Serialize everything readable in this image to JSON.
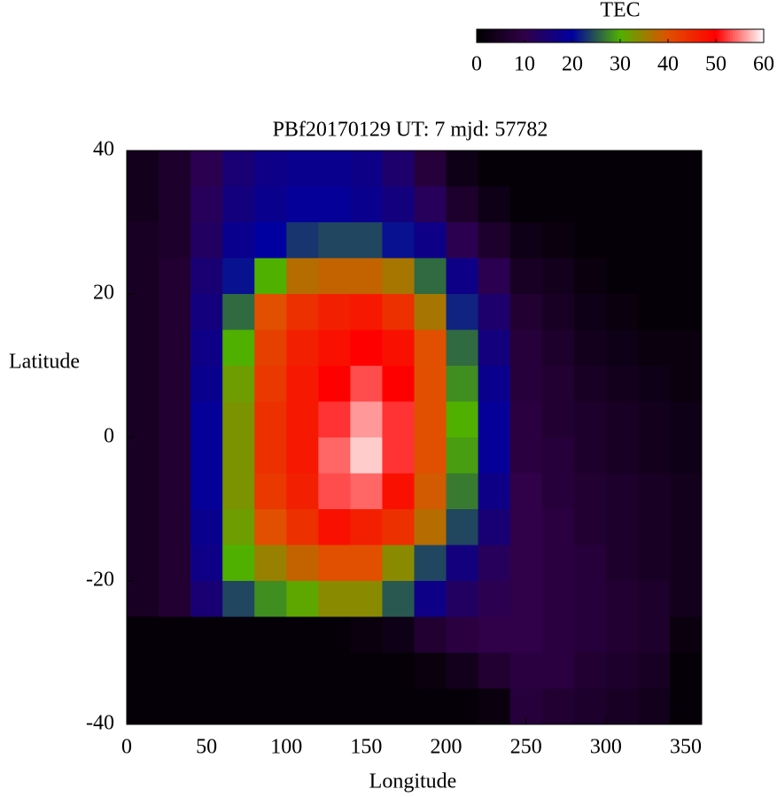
{
  "chart_data": {
    "type": "heatmap",
    "title": "PBf20170129  UT: 7  mjd: 57782",
    "x_label": "Longitude",
    "y_label": "Latitude",
    "colorbar_label": "TEC",
    "x": [
      10,
      30,
      50,
      70,
      90,
      110,
      130,
      150,
      170,
      190,
      210,
      230,
      250,
      270,
      290,
      310,
      330,
      350
    ],
    "y": [
      37.5,
      32.5,
      27.5,
      22.5,
      17.5,
      12.5,
      7.5,
      2.5,
      -2.5,
      -7.5,
      -12.5,
      -17.5,
      -22.5,
      -27.5,
      -32.5,
      -37.5
    ],
    "z": [
      [
        4,
        6,
        11,
        15,
        17,
        18,
        18,
        17,
        14,
        8,
        3,
        1,
        1,
        1,
        1,
        1,
        1,
        1
      ],
      [
        4,
        6,
        12,
        16,
        18,
        19,
        19,
        18,
        16,
        12,
        6,
        3,
        1,
        1,
        1,
        1,
        1,
        1
      ],
      [
        5,
        6,
        13,
        18,
        20,
        23,
        24,
        24,
        21,
        17,
        11,
        6,
        3,
        2,
        1,
        1,
        1,
        1
      ],
      [
        5,
        7,
        15,
        21,
        30,
        37,
        38,
        38,
        36,
        26,
        17,
        11,
        5,
        4,
        2,
        1,
        1,
        1
      ],
      [
        5,
        7,
        16,
        26,
        40,
        44,
        46,
        47,
        44,
        36,
        22,
        14,
        7,
        5,
        3,
        2,
        1,
        1
      ],
      [
        5,
        7,
        17,
        30,
        42,
        46,
        48,
        50,
        48,
        40,
        26,
        16,
        8,
        6,
        4,
        3,
        2,
        2
      ],
      [
        5,
        7,
        18,
        32,
        43,
        47,
        50,
        53,
        50,
        40,
        28,
        18,
        8,
        7,
        5,
        4,
        3,
        2
      ],
      [
        5,
        7,
        19,
        33,
        44,
        47,
        52,
        56,
        52,
        40,
        30,
        19,
        9,
        7,
        6,
        5,
        4,
        3
      ],
      [
        5,
        7,
        19,
        33,
        44,
        47,
        54,
        58,
        52,
        40,
        29,
        19,
        9,
        8,
        6,
        5,
        4,
        3
      ],
      [
        5,
        7,
        19,
        33,
        43,
        46,
        53,
        54,
        48,
        39,
        27,
        17,
        10,
        8,
        7,
        6,
        5,
        4
      ],
      [
        5,
        7,
        18,
        32,
        40,
        44,
        48,
        46,
        44,
        37,
        24,
        15,
        10,
        9,
        7,
        6,
        5,
        4
      ],
      [
        5,
        7,
        17,
        30,
        35,
        38,
        40,
        40,
        34,
        24,
        16,
        12,
        10,
        9,
        8,
        6,
        5,
        4
      ],
      [
        5,
        7,
        15,
        24,
        28,
        31,
        34,
        34,
        25,
        17,
        13,
        11,
        10,
        9,
        8,
        7,
        6,
        4
      ],
      [
        1,
        1,
        1,
        1,
        1,
        1,
        1,
        2,
        3,
        7,
        9,
        10,
        10,
        9,
        8,
        7,
        6,
        2
      ],
      [
        1,
        1,
        1,
        1,
        1,
        1,
        1,
        1,
        1,
        2,
        4,
        7,
        9,
        9,
        7,
        6,
        5,
        1
      ],
      [
        1,
        1,
        1,
        1,
        1,
        1,
        1,
        1,
        1,
        1,
        1,
        2,
        8,
        7,
        6,
        5,
        4,
        1
      ]
    ],
    "xlim": [
      0,
      360
    ],
    "xticks": [
      0,
      50,
      100,
      150,
      200,
      250,
      300,
      350
    ],
    "ylim": [
      -40,
      40
    ],
    "yticks": [
      -40,
      -20,
      0,
      20,
      40
    ],
    "zlim": [
      0,
      60
    ],
    "zticks": [
      0,
      10,
      20,
      30,
      40,
      50,
      60
    ],
    "colormap": [
      "#000000",
      "#300048",
      "#0000a0",
      "#50b000",
      "#e05000",
      "#ff0000",
      "#ffffff"
    ]
  }
}
